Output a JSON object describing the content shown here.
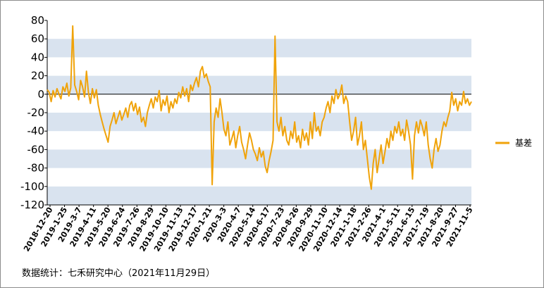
{
  "chart_data": {
    "type": "line",
    "title": "",
    "xlabel": "",
    "ylabel": "",
    "ylim": [
      -120,
      80
    ],
    "yticks": [
      80,
      60,
      40,
      20,
      0,
      -20,
      -40,
      -60,
      -80,
      -100,
      -120
    ],
    "grid": "alternating horizontal bands",
    "legend_position": "right",
    "x_tick_labels": [
      "2018-12-20",
      "2019-1-25",
      "2019-3-7",
      "2019-4-11",
      "2019-5-20",
      "2019-6-24",
      "2019-7-26",
      "2019-8-29",
      "2019-10-10",
      "2019-11-13",
      "2019-12-17",
      "2020-1-21",
      "2020-3-3",
      "2020-4-7",
      "2020-5-14",
      "2020-6-17",
      "2020-7-23",
      "2020-8-26",
      "2020-9-29",
      "2020-11-10",
      "2020-12-14",
      "2021-1-18",
      "2021-2-26",
      "2021-4-1",
      "2021-5-11",
      "2021-6-15",
      "2021-7-19",
      "2021-8-20",
      "2021-9-27",
      "2021-11-5"
    ],
    "series": [
      {
        "name": "基差",
        "color": "#f0a30a",
        "values": [
          5,
          2,
          -8,
          4,
          -3,
          6,
          0,
          -5,
          8,
          3,
          12,
          -2,
          7,
          74,
          10,
          3,
          -6,
          15,
          8,
          -3,
          25,
          2,
          -10,
          6,
          -4,
          5,
          -12,
          -22,
          -30,
          -38,
          -45,
          -52,
          -35,
          -28,
          -20,
          -32,
          -25,
          -18,
          -28,
          -22,
          -15,
          -25,
          -12,
          -8,
          -18,
          -10,
          -22,
          -14,
          -30,
          -25,
          -35,
          -20,
          -12,
          -5,
          -15,
          -3,
          -8,
          4,
          -18,
          -6,
          -12,
          -2,
          -20,
          -8,
          -15,
          -5,
          -10,
          2,
          -4,
          8,
          -2,
          6,
          -8,
          10,
          4,
          12,
          18,
          8,
          25,
          30,
          18,
          22,
          14,
          8,
          -98,
          -30,
          -15,
          -25,
          -5,
          -20,
          -38,
          -45,
          -30,
          -55,
          -48,
          -40,
          -58,
          -45,
          -35,
          -52,
          -60,
          -70,
          -55,
          -42,
          -50,
          -60,
          -65,
          -72,
          -58,
          -68,
          -62,
          -78,
          -85,
          -72,
          -62,
          -50,
          63,
          -30,
          -40,
          -25,
          -45,
          -35,
          -50,
          -55,
          -40,
          -48,
          -30,
          -52,
          -45,
          -58,
          -38,
          -50,
          -42,
          -55,
          -30,
          -48,
          -20,
          -40,
          -35,
          -45,
          -30,
          -25,
          -15,
          -8,
          -20,
          -2,
          -10,
          5,
          -5,
          0,
          10,
          -10,
          -2,
          -8,
          -30,
          -50,
          -40,
          -25,
          -55,
          -45,
          -30,
          -60,
          -50,
          -70,
          -90,
          -103,
          -75,
          -60,
          -85,
          -70,
          -55,
          -75,
          -62,
          -48,
          -58,
          -40,
          -50,
          -35,
          -42,
          -30,
          -45,
          -38,
          -50,
          -28,
          -40,
          -55,
          -92,
          -45,
          -30,
          -42,
          -28,
          -35,
          -45,
          -30,
          -55,
          -70,
          -80,
          -60,
          -48,
          -62,
          -55,
          -40,
          -30,
          -35,
          -25,
          -18,
          2,
          -12,
          -5,
          -18,
          -8,
          -12,
          3,
          -10,
          -5,
          -12,
          -8
        ]
      }
    ]
  },
  "legend": {
    "label": "基差",
    "color": "#f0a30a"
  },
  "source_note": "数据统计：七禾研究中心（2021年11月29日）"
}
